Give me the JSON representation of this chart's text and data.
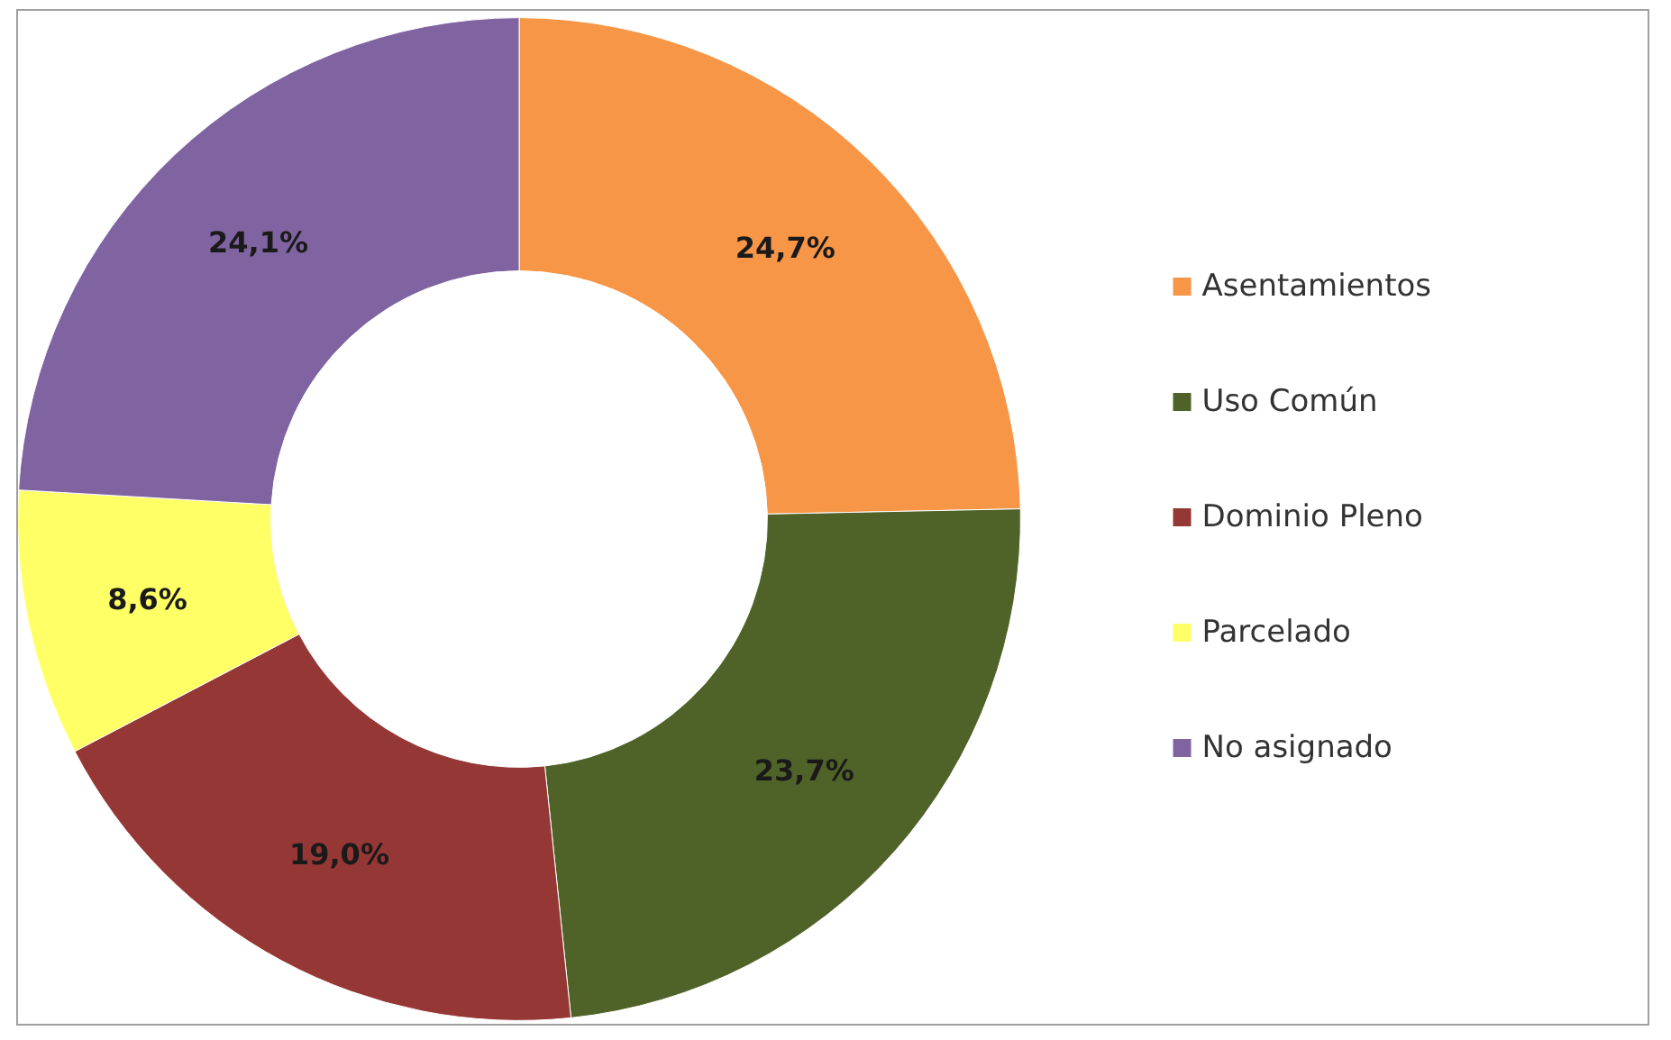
{
  "chart_data": {
    "type": "donut",
    "categories": [
      "Asentamientos",
      "Uso Común",
      "Dominio Pleno",
      "Parcelado",
      "No asignado"
    ],
    "values": [
      24.7,
      23.7,
      19.0,
      8.6,
      24.1
    ],
    "value_labels": [
      "24,7%",
      "23,7%",
      "19,0%",
      "8,6%",
      "24,1%"
    ],
    "colors": [
      "#f79646",
      "#4f6228",
      "#953735",
      "#ffff66",
      "#8064a2"
    ],
    "legend": "right"
  }
}
